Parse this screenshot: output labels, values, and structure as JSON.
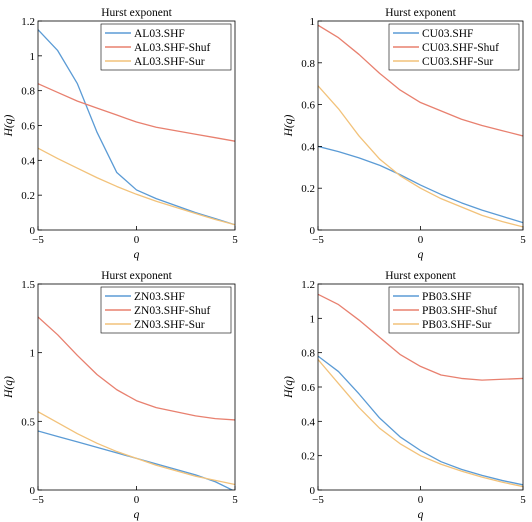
{
  "chart_data": [
    {
      "type": "line",
      "title": "Hurst exponent",
      "xlabel": "q",
      "ylabel": "H(q)",
      "xlim": [
        -5,
        5
      ],
      "ylim": [
        0,
        1.2
      ],
      "xticks": [
        -5,
        0,
        5
      ],
      "xtick_labels": [
        "−5",
        "0",
        "5"
      ],
      "yticks": [
        0,
        0.2,
        0.4,
        0.6,
        0.8,
        1,
        1.2
      ],
      "ytick_labels": [
        "0",
        "0.2",
        "0.4",
        "0.6",
        "0.8",
        "1",
        "1.2"
      ],
      "legend_position": "top-right",
      "x": [
        -5,
        -4,
        -3,
        -2,
        -1,
        0,
        1,
        2,
        3,
        4,
        5
      ],
      "series": [
        {
          "name": "AL03.SHF",
          "color": "#5b9bd5",
          "values": [
            1.15,
            1.03,
            0.84,
            0.56,
            0.33,
            0.23,
            0.18,
            0.14,
            0.1,
            0.065,
            0.03
          ]
        },
        {
          "name": "AL03.SHF-Shuf",
          "color": "#e8806f",
          "values": [
            0.84,
            0.79,
            0.74,
            0.7,
            0.66,
            0.62,
            0.59,
            0.57,
            0.55,
            0.53,
            0.51
          ]
        },
        {
          "name": "AL03.SHF-Sur",
          "color": "#f2c27a",
          "values": [
            0.47,
            0.41,
            0.355,
            0.3,
            0.25,
            0.205,
            0.165,
            0.13,
            0.095,
            0.06,
            0.03
          ]
        }
      ]
    },
    {
      "type": "line",
      "title": "Hurst exponent",
      "xlabel": "q",
      "ylabel": "H(q)",
      "xlim": [
        -5,
        5
      ],
      "ylim": [
        0,
        1
      ],
      "xticks": [
        -5,
        0,
        5
      ],
      "xtick_labels": [
        "−5",
        "0",
        "5"
      ],
      "yticks": [
        0,
        0.2,
        0.4,
        0.6,
        0.8,
        1
      ],
      "ytick_labels": [
        "0",
        "0.2",
        "0.4",
        "0.6",
        "0.8",
        "1"
      ],
      "legend_position": "top-right",
      "x": [
        -5,
        -4,
        -3,
        -2,
        -1,
        0,
        1,
        2,
        3,
        4,
        5
      ],
      "series": [
        {
          "name": "CU03.SHF",
          "color": "#5b9bd5",
          "values": [
            0.4,
            0.375,
            0.345,
            0.31,
            0.265,
            0.215,
            0.17,
            0.13,
            0.095,
            0.065,
            0.035
          ]
        },
        {
          "name": "CU03.SHF-Shuf",
          "color": "#e8806f",
          "values": [
            0.98,
            0.92,
            0.84,
            0.75,
            0.67,
            0.61,
            0.57,
            0.53,
            0.5,
            0.475,
            0.45
          ]
        },
        {
          "name": "CU03.SHF-Sur",
          "color": "#f2c27a",
          "values": [
            0.69,
            0.58,
            0.45,
            0.34,
            0.26,
            0.2,
            0.15,
            0.11,
            0.07,
            0.04,
            0.015
          ]
        }
      ]
    },
    {
      "type": "line",
      "title": "Hurst exponent",
      "xlabel": "q",
      "ylabel": "H(q)",
      "xlim": [
        -5,
        5
      ],
      "ylim": [
        0,
        1.5
      ],
      "xticks": [
        -5,
        0,
        5
      ],
      "xtick_labels": [
        "−5",
        "0",
        "5"
      ],
      "yticks": [
        0,
        0.5,
        1,
        1.5
      ],
      "ytick_labels": [
        "0",
        "0.5",
        "1",
        "1.5"
      ],
      "legend_position": "top-right",
      "x": [
        -5,
        -4,
        -3,
        -2,
        -1,
        0,
        1,
        2,
        3,
        4,
        5
      ],
      "series": [
        {
          "name": "ZN03.SHF",
          "color": "#5b9bd5",
          "values": [
            0.43,
            0.39,
            0.35,
            0.31,
            0.27,
            0.23,
            0.19,
            0.15,
            0.11,
            0.06,
            -0.01
          ]
        },
        {
          "name": "ZN03.SHF-Shuf",
          "color": "#e8806f",
          "values": [
            1.26,
            1.13,
            0.98,
            0.84,
            0.73,
            0.65,
            0.6,
            0.57,
            0.54,
            0.52,
            0.51
          ]
        },
        {
          "name": "ZN03.SHF-Sur",
          "color": "#f2c27a",
          "values": [
            0.57,
            0.49,
            0.41,
            0.34,
            0.28,
            0.23,
            0.18,
            0.14,
            0.1,
            0.07,
            0.04
          ]
        }
      ]
    },
    {
      "type": "line",
      "title": "Hurst exponent",
      "xlabel": "q",
      "ylabel": "H(q)",
      "xlim": [
        -5,
        5
      ],
      "ylim": [
        0,
        1.2
      ],
      "xticks": [
        -5,
        0,
        5
      ],
      "xtick_labels": [
        "−5",
        "0",
        "5"
      ],
      "yticks": [
        0,
        0.2,
        0.4,
        0.6,
        0.8,
        1,
        1.2
      ],
      "ytick_labels": [
        "0",
        "0.2",
        "0.4",
        "0.6",
        "0.8",
        "1",
        "1.2"
      ],
      "legend_position": "top-right",
      "x": [
        -5,
        -4,
        -3,
        -2,
        -1,
        0,
        1,
        2,
        3,
        4,
        5
      ],
      "series": [
        {
          "name": "PB03.SHF",
          "color": "#5b9bd5",
          "values": [
            0.78,
            0.69,
            0.56,
            0.42,
            0.31,
            0.23,
            0.165,
            0.12,
            0.085,
            0.055,
            0.03
          ]
        },
        {
          "name": "PB03.SHF-Shuf",
          "color": "#e8806f",
          "values": [
            1.14,
            1.08,
            0.99,
            0.89,
            0.79,
            0.72,
            0.67,
            0.65,
            0.64,
            0.645,
            0.65
          ]
        },
        {
          "name": "PB03.SHF-Sur",
          "color": "#f2c27a",
          "values": [
            0.76,
            0.62,
            0.48,
            0.36,
            0.27,
            0.2,
            0.15,
            0.11,
            0.075,
            0.045,
            0.02
          ]
        }
      ]
    }
  ]
}
